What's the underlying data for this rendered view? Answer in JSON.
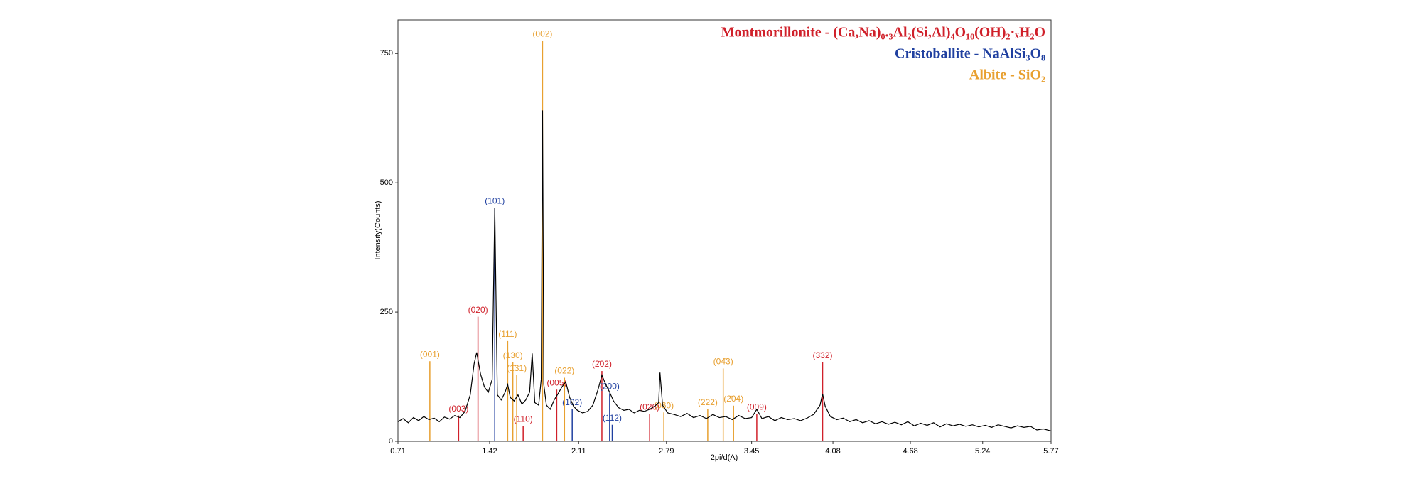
{
  "chart_data": {
    "type": "line",
    "x_label": "2pi/d(A)",
    "y_label": "Intensity(Counts)",
    "xlim": [
      0.71,
      5.77
    ],
    "ylim": [
      0,
      815
    ],
    "xticks": [
      0.71,
      1.42,
      2.11,
      2.79,
      3.45,
      4.08,
      4.68,
      5.24,
      5.77
    ],
    "yticks": [
      0,
      250,
      500,
      750
    ],
    "series": [
      {
        "color": "#000000",
        "x": [
          0.71,
          0.75,
          0.79,
          0.83,
          0.87,
          0.91,
          0.95,
          0.99,
          1.03,
          1.07,
          1.11,
          1.15,
          1.19,
          1.23,
          1.27,
          1.3,
          1.32,
          1.35,
          1.38,
          1.41,
          1.44,
          1.46,
          1.48,
          1.51,
          1.54,
          1.56,
          1.58,
          1.61,
          1.64,
          1.67,
          1.7,
          1.73,
          1.75,
          1.77,
          1.8,
          1.82,
          1.83,
          1.84,
          1.86,
          1.89,
          1.92,
          1.95,
          1.98,
          2.01,
          2.04,
          2.07,
          2.1,
          2.14,
          2.18,
          2.22,
          2.26,
          2.29,
          2.32,
          2.35,
          2.38,
          2.42,
          2.46,
          2.5,
          2.54,
          2.58,
          2.62,
          2.66,
          2.7,
          2.73,
          2.74,
          2.76,
          2.8,
          2.85,
          2.9,
          2.95,
          3.0,
          3.05,
          3.1,
          3.15,
          3.2,
          3.25,
          3.3,
          3.35,
          3.4,
          3.45,
          3.49,
          3.53,
          3.58,
          3.63,
          3.68,
          3.73,
          3.78,
          3.83,
          3.88,
          3.93,
          3.98,
          4.0,
          4.02,
          4.06,
          4.11,
          4.16,
          4.21,
          4.26,
          4.31,
          4.36,
          4.41,
          4.46,
          4.51,
          4.56,
          4.61,
          4.66,
          4.71,
          4.76,
          4.81,
          4.86,
          4.91,
          4.96,
          5.01,
          5.06,
          5.11,
          5.16,
          5.21,
          5.26,
          5.31,
          5.36,
          5.41,
          5.46,
          5.51,
          5.56,
          5.61,
          5.66,
          5.71,
          5.77
        ],
        "values": [
          38,
          44,
          36,
          46,
          40,
          48,
          42,
          45,
          38,
          47,
          43,
          50,
          46,
          58,
          90,
          150,
          172,
          130,
          105,
          95,
          120,
          452,
          90,
          80,
          95,
          110,
          85,
          78,
          90,
          72,
          80,
          95,
          170,
          75,
          70,
          120,
          640,
          110,
          70,
          62,
          80,
          92,
          105,
          115,
          85,
          68,
          60,
          55,
          58,
          70,
          100,
          128,
          110,
          95,
          78,
          65,
          60,
          62,
          55,
          60,
          58,
          62,
          68,
          75,
          133,
          70,
          55,
          52,
          48,
          54,
          46,
          50,
          44,
          52,
          46,
          48,
          42,
          50,
          44,
          46,
          62,
          44,
          48,
          40,
          46,
          42,
          44,
          40,
          45,
          52,
          70,
          92,
          68,
          48,
          42,
          45,
          38,
          42,
          36,
          40,
          34,
          38,
          33,
          37,
          32,
          38,
          30,
          35,
          31,
          36,
          28,
          34,
          30,
          33,
          29,
          32,
          28,
          31,
          27,
          32,
          29,
          26,
          30,
          27,
          29,
          22,
          24,
          20
        ]
      }
    ],
    "phases": [
      {
        "name": "Montmorillonite - (Ca,Na)₀.₃Al₂(Si,Al)₄O₁₀(OH)₂·ₓH₂O",
        "color": "#d0202a",
        "x": [
          1.18,
          1.33,
          1.68,
          1.94,
          2.29,
          2.66,
          3.49,
          4.0
        ],
        "values": [
          50,
          241,
          30,
          100,
          136,
          53,
          53,
          153
        ],
        "labels": [
          "(003)",
          "(020)",
          "(110)",
          "(005)",
          "(2̄02)",
          "(026)",
          "(009)",
          "(3̄32)"
        ]
      },
      {
        "name": "Cristoballite - NaAlSi₃O₈",
        "color": "#2040a0",
        "x": [
          1.46,
          2.06,
          2.35,
          2.37
        ],
        "values": [
          452,
          62,
          93,
          32
        ],
        "labels": [
          "(101)",
          "(102)",
          "(200)",
          "(112)"
        ]
      },
      {
        "name": "Albite - SiO₂",
        "color": "#e8a030",
        "x": [
          0.957,
          1.56,
          1.6,
          1.63,
          1.83,
          2.0,
          2.77,
          3.11,
          3.23,
          3.31
        ],
        "values": [
          155,
          194,
          153,
          128,
          775,
          123,
          56,
          62,
          141,
          69
        ],
        "labels": [
          "(001)",
          "(111)",
          "(130)",
          "(1̄31)",
          "(002)",
          "(022)",
          "(060)",
          "(222)",
          "(04̄3)",
          "(2̄04)"
        ]
      }
    ]
  }
}
